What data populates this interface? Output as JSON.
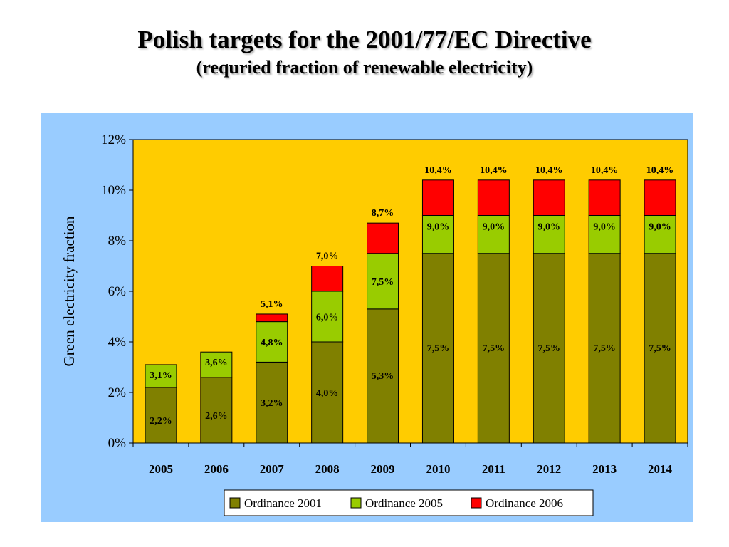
{
  "slide": {
    "title": "Polish targets  for the 2001/77/EC Directive",
    "subtitle": "(requried fraction of renewable electricity)"
  },
  "colors": {
    "panel_bg": "#99ccff",
    "plot_bg": "#ffcc00",
    "ordinance_2001": "#808000",
    "ordinance_2005": "#99cc00",
    "ordinance_2006": "#ff0000"
  },
  "chart_data": {
    "type": "bar",
    "stacked": true,
    "categories": [
      "2005",
      "2006",
      "2007",
      "2008",
      "2009",
      "2010",
      "2011",
      "2012",
      "2013",
      "2014"
    ],
    "ylabel": "Green electricity fraction",
    "xlabel": "",
    "ylim": [
      0,
      12
    ],
    "yticks": [
      "0%",
      "2%",
      "4%",
      "6%",
      "8%",
      "10%",
      "12%"
    ],
    "legend_position": "bottom",
    "series": [
      {
        "name": "Ordinance 2001",
        "color_key": "ordinance_2001",
        "cumulative": [
          2.2,
          2.6,
          3.2,
          4.0,
          5.3,
          7.5,
          7.5,
          7.5,
          7.5,
          7.5
        ],
        "labels": [
          "2,2%",
          "2,6%",
          "3,2%",
          "4,0%",
          "5,3%",
          "7,5%",
          "7,5%",
          "7,5%",
          "7,5%",
          "7,5%"
        ]
      },
      {
        "name": "Ordinance 2005",
        "color_key": "ordinance_2005",
        "cumulative": [
          3.1,
          3.6,
          4.8,
          6.0,
          7.5,
          9.0,
          9.0,
          9.0,
          9.0,
          9.0
        ],
        "labels": [
          "3,1%",
          "3,6%",
          "4,8%",
          "6,0%",
          "7,5%",
          "9,0%",
          "9,0%",
          "9,0%",
          "9,0%",
          "9,0%"
        ]
      },
      {
        "name": "Ordinance 2006",
        "color_key": "ordinance_2006",
        "cumulative": [
          null,
          null,
          5.1,
          7.0,
          8.7,
          10.4,
          10.4,
          10.4,
          10.4,
          10.4
        ],
        "labels": [
          null,
          null,
          "5,1%",
          "7,0%",
          "8,7%",
          "10,4%",
          "10,4%",
          "10,4%",
          "10,4%",
          "10,4%"
        ]
      }
    ]
  }
}
